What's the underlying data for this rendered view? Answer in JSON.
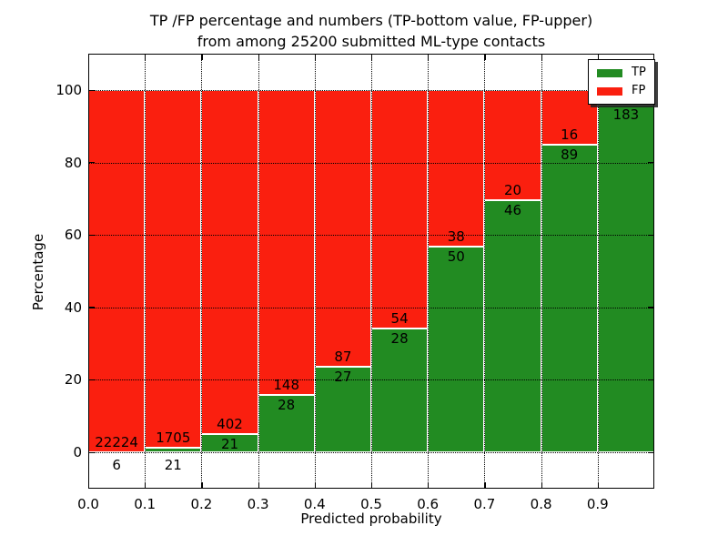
{
  "chart_data": {
    "type": "bar",
    "stacked": true,
    "normalized_to_percent": true,
    "title_line1": "TP /FP percentage and numbers (TP-bottom value, FP-upper)",
    "title_line2": "from among 25200 submitted ML-type contacts",
    "xlabel": "Predicted probability",
    "ylabel": "Percentage",
    "x_tick_labels": [
      "0.0",
      "0.1",
      "0.2",
      "0.3",
      "0.4",
      "0.5",
      "0.6",
      "0.7",
      "0.8",
      "0.9"
    ],
    "y_tick_values": [
      0,
      20,
      40,
      60,
      80,
      100
    ],
    "xlim": [
      0,
      1
    ],
    "ylim": [
      -10,
      110
    ],
    "grid": "dotted",
    "bin_width": 0.1,
    "colors": {
      "tp": "#228b22",
      "fp": "#fa1f0f",
      "bar_edge": "#ffffff",
      "grid": "#000000",
      "text": "#000000",
      "background": "#ffffff"
    },
    "legend": {
      "position": "upper right",
      "entries": [
        {
          "label": "TP",
          "color": "#228b22"
        },
        {
          "label": "FP",
          "color": "#fa1f0f"
        }
      ]
    },
    "bars": [
      {
        "bin": "0.0-0.1",
        "tp_count": 6,
        "fp_count": 22224,
        "tp_pct": 0.03,
        "tp_label_below_axis": true
      },
      {
        "bin": "0.1-0.2",
        "tp_count": 21,
        "fp_count": 1705,
        "tp_pct": 1.2,
        "tp_label_below_axis": true
      },
      {
        "bin": "0.2-0.3",
        "tp_count": 21,
        "fp_count": 402,
        "tp_pct": 5.0,
        "tp_label_below_axis": false
      },
      {
        "bin": "0.3-0.4",
        "tp_count": 28,
        "fp_count": 148,
        "tp_pct": 15.9,
        "tp_label_below_axis": false
      },
      {
        "bin": "0.4-0.5",
        "tp_count": 27,
        "fp_count": 87,
        "tp_pct": 23.7,
        "tp_label_below_axis": false
      },
      {
        "bin": "0.5-0.6",
        "tp_count": 28,
        "fp_count": 54,
        "tp_pct": 34.1,
        "tp_label_below_axis": false
      },
      {
        "bin": "0.6-0.7",
        "tp_count": 50,
        "fp_count": 38,
        "tp_pct": 56.8,
        "tp_label_below_axis": false
      },
      {
        "bin": "0.7-0.8",
        "tp_count": 46,
        "fp_count": 20,
        "tp_pct": 69.7,
        "tp_label_below_axis": false
      },
      {
        "bin": "0.8-0.9",
        "tp_count": 89,
        "fp_count": 16,
        "tp_pct": 84.8,
        "tp_label_below_axis": false
      },
      {
        "bin": "0.9-1.0",
        "tp_count": 183,
        "fp_count": null,
        "tp_pct": 96.0,
        "tp_label_below_axis": false,
        "fp_label_hidden_behind_legend": true
      }
    ]
  }
}
